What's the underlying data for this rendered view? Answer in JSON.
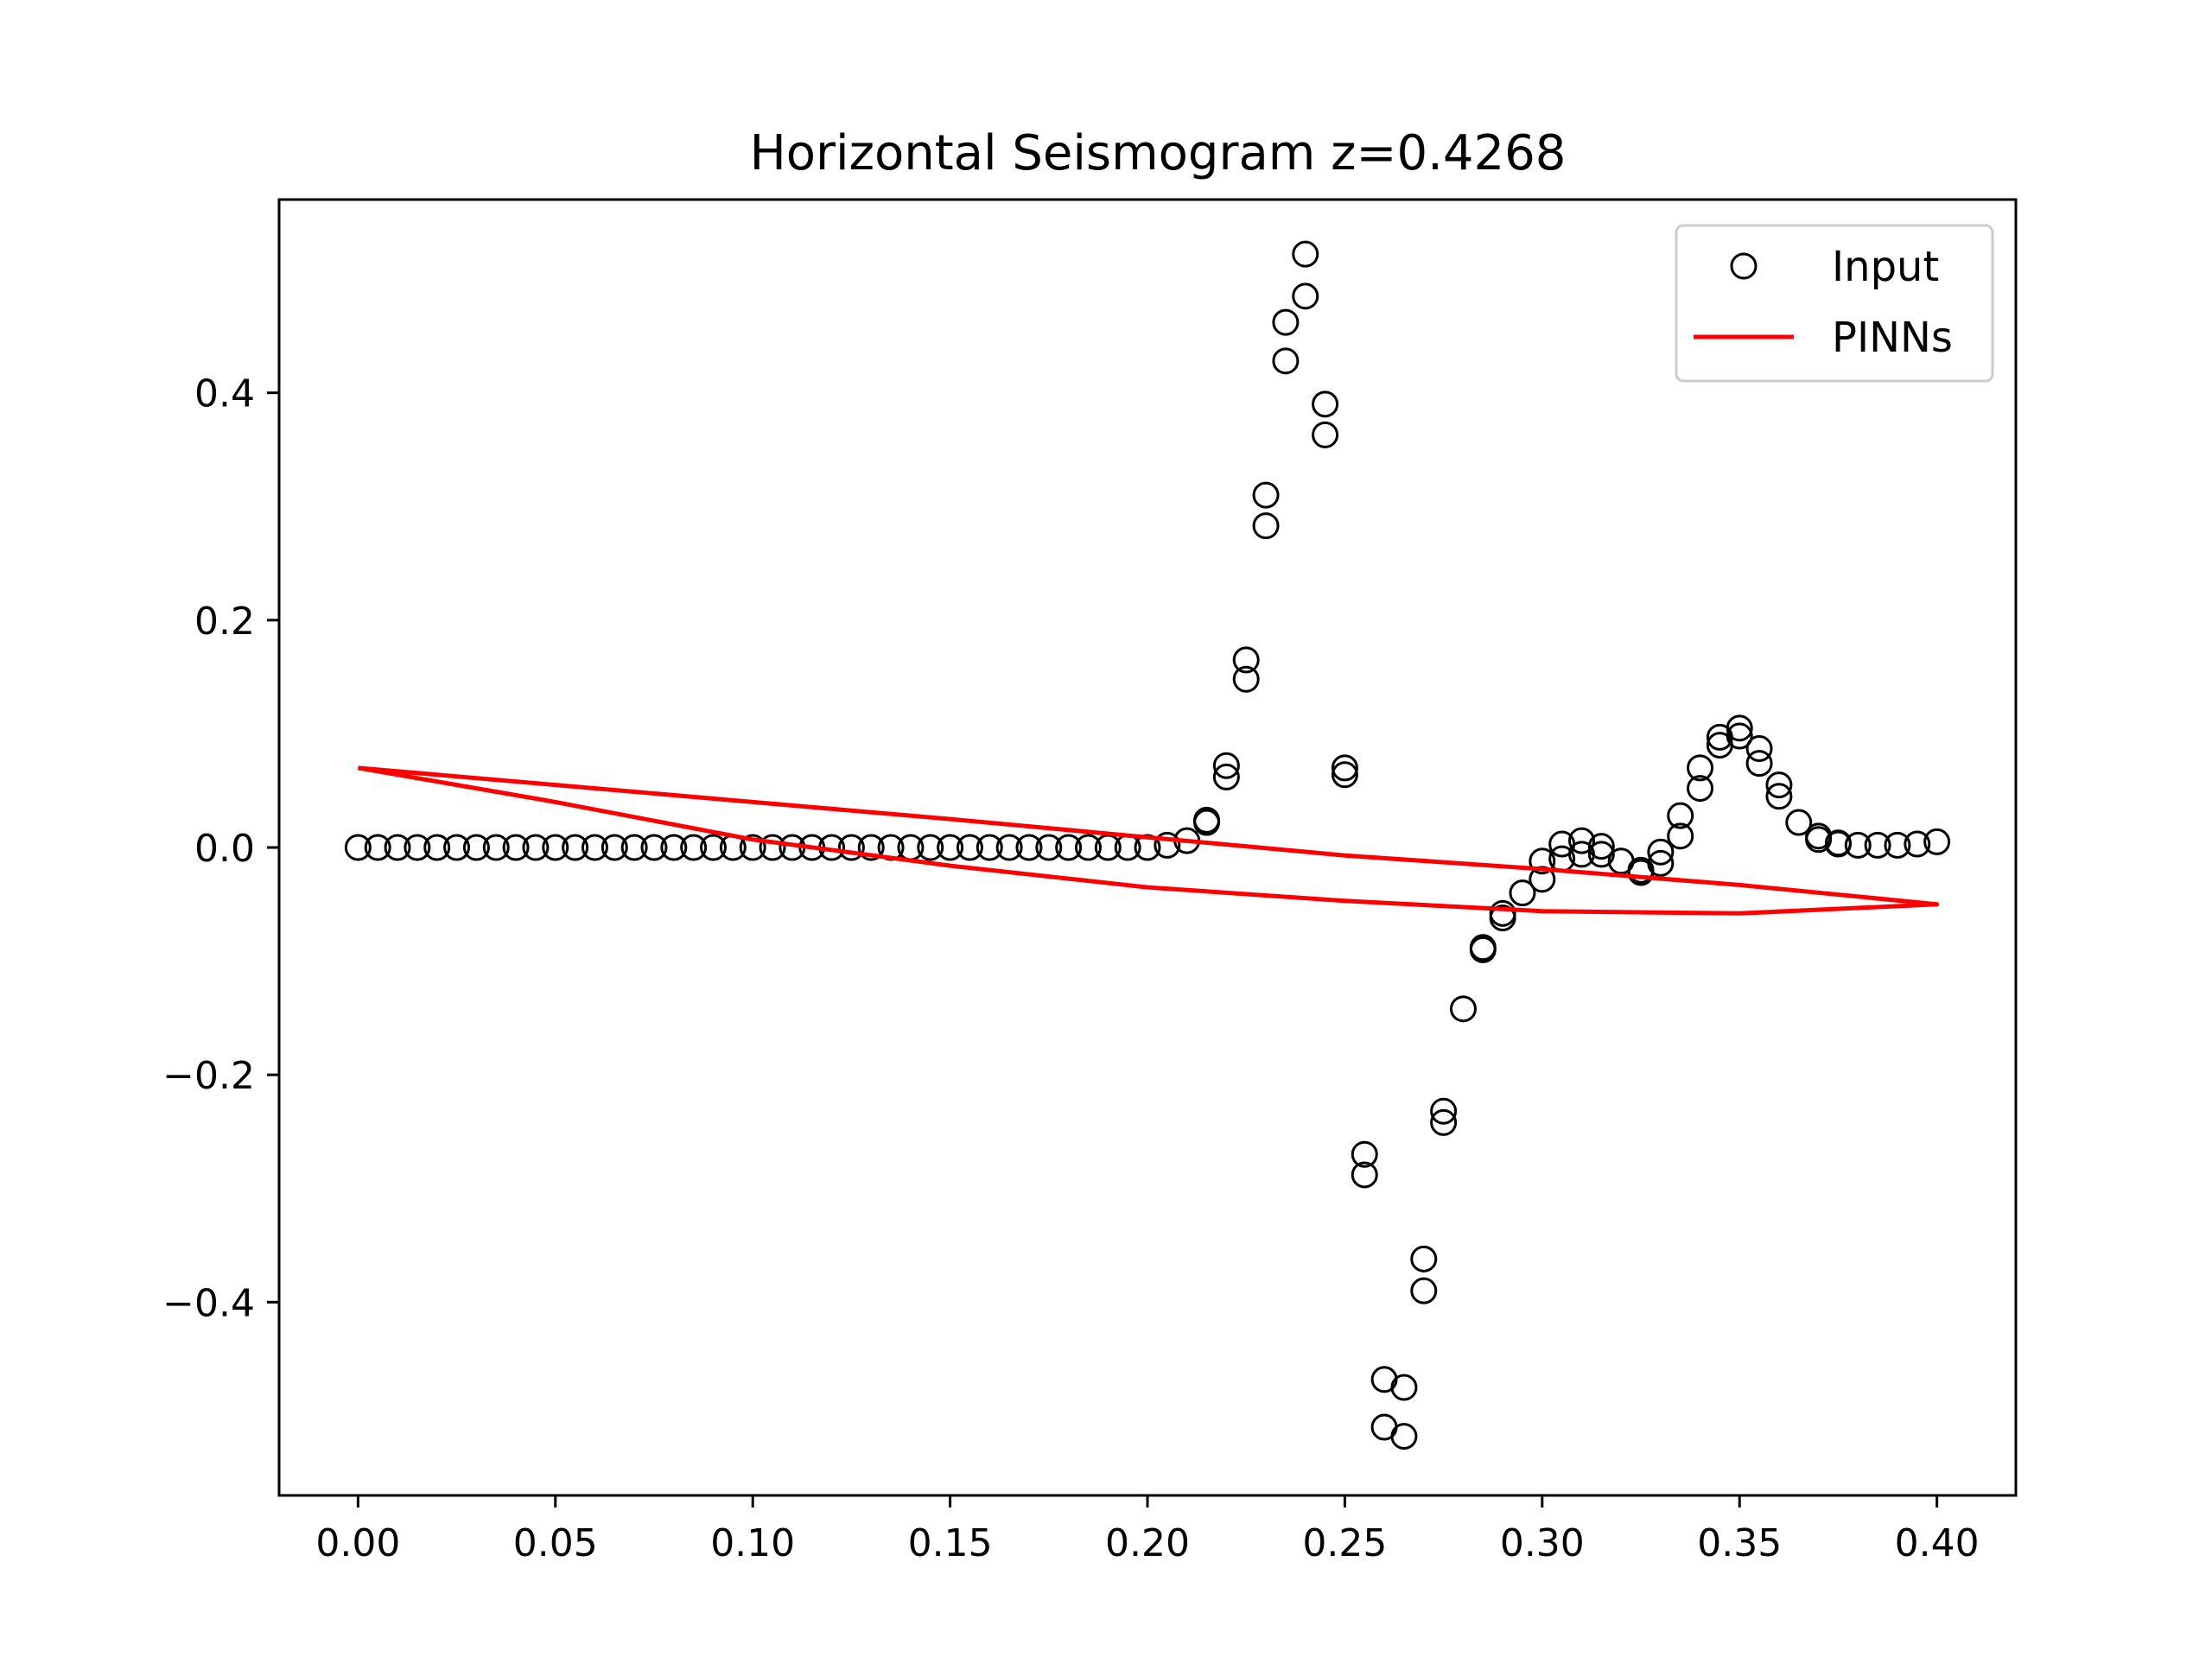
{
  "chart_data": {
    "type": "scatter",
    "title": "Horizontal Seismogram z=0.4268",
    "xlabel": "",
    "ylabel": "",
    "xlim": [
      -0.02,
      0.42
    ],
    "ylim": [
      -0.57,
      0.57
    ],
    "xticks": [
      0.0,
      0.05,
      0.1,
      0.15,
      0.2,
      0.25,
      0.3,
      0.35,
      0.4
    ],
    "xtick_labels": [
      "0.00",
      "0.05",
      "0.10",
      "0.15",
      "0.20",
      "0.25",
      "0.30",
      "0.35",
      "0.40"
    ],
    "yticks": [
      -0.4,
      -0.2,
      0.0,
      0.2,
      0.4
    ],
    "ytick_labels": [
      "−0.4",
      "−0.2",
      "0.0",
      "0.2",
      "0.4"
    ],
    "grid": false,
    "legend_position": "top-right",
    "series": [
      {
        "name": "Input",
        "kind": "scatter",
        "marker": "open-circle",
        "color": "#000000",
        "points": [
          [
            0.0,
            0.0
          ],
          [
            0.005,
            0.0
          ],
          [
            0.01,
            0.0
          ],
          [
            0.015,
            0.0
          ],
          [
            0.02,
            0.0
          ],
          [
            0.025,
            0.0
          ],
          [
            0.03,
            0.0
          ],
          [
            0.035,
            0.0
          ],
          [
            0.04,
            0.0
          ],
          [
            0.045,
            0.0
          ],
          [
            0.05,
            0.0
          ],
          [
            0.055,
            0.0
          ],
          [
            0.06,
            0.0
          ],
          [
            0.065,
            0.0
          ],
          [
            0.07,
            0.0
          ],
          [
            0.075,
            0.0
          ],
          [
            0.08,
            0.0
          ],
          [
            0.085,
            0.0
          ],
          [
            0.09,
            0.0
          ],
          [
            0.095,
            0.0
          ],
          [
            0.1,
            0.0
          ],
          [
            0.105,
            0.0
          ],
          [
            0.11,
            0.0
          ],
          [
            0.115,
            0.0
          ],
          [
            0.12,
            0.0
          ],
          [
            0.125,
            0.0
          ],
          [
            0.13,
            0.0
          ],
          [
            0.135,
            0.0
          ],
          [
            0.14,
            0.0
          ],
          [
            0.145,
            0.0
          ],
          [
            0.15,
            0.0
          ],
          [
            0.155,
            0.0
          ],
          [
            0.16,
            0.0
          ],
          [
            0.165,
            0.0
          ],
          [
            0.17,
            0.0
          ],
          [
            0.175,
            0.0
          ],
          [
            0.18,
            0.0
          ],
          [
            0.185,
            0.0
          ],
          [
            0.19,
            0.0
          ],
          [
            0.195,
            0.0
          ],
          [
            0.2,
            0.0
          ],
          [
            0.205,
            0.002
          ],
          [
            0.21,
            0.006
          ],
          [
            0.215,
            0.024
          ],
          [
            0.215,
            0.022
          ],
          [
            0.22,
            0.072
          ],
          [
            0.22,
            0.062
          ],
          [
            0.225,
            0.165
          ],
          [
            0.225,
            0.148
          ],
          [
            0.23,
            0.31
          ],
          [
            0.23,
            0.283
          ],
          [
            0.235,
            0.462
          ],
          [
            0.235,
            0.428
          ],
          [
            0.24,
            0.522
          ],
          [
            0.24,
            0.485
          ],
          [
            0.245,
            0.39
          ],
          [
            0.245,
            0.363
          ],
          [
            0.25,
            0.07
          ],
          [
            0.25,
            0.064
          ],
          [
            0.255,
            -0.27
          ],
          [
            0.255,
            -0.288
          ],
          [
            0.26,
            -0.468
          ],
          [
            0.26,
            -0.51
          ],
          [
            0.265,
            -0.475
          ],
          [
            0.265,
            -0.518
          ],
          [
            0.27,
            -0.362
          ],
          [
            0.27,
            -0.39
          ],
          [
            0.275,
            -0.232
          ],
          [
            0.275,
            -0.242
          ],
          [
            0.28,
            -0.142
          ],
          [
            0.285,
            -0.088
          ],
          [
            0.285,
            -0.09
          ],
          [
            0.29,
            -0.058
          ],
          [
            0.29,
            -0.062
          ],
          [
            0.295,
            -0.04
          ],
          [
            0.3,
            -0.028
          ],
          [
            0.3,
            -0.012
          ],
          [
            0.305,
            -0.01
          ],
          [
            0.305,
            0.003
          ],
          [
            0.31,
            0.006
          ],
          [
            0.31,
            -0.006
          ],
          [
            0.315,
            0.001
          ],
          [
            0.315,
            -0.006
          ],
          [
            0.32,
            -0.012
          ],
          [
            0.325,
            -0.02
          ],
          [
            0.325,
            -0.022
          ],
          [
            0.33,
            -0.004
          ],
          [
            0.33,
            -0.014
          ],
          [
            0.335,
            0.028
          ],
          [
            0.335,
            0.01
          ],
          [
            0.34,
            0.07
          ],
          [
            0.34,
            0.052
          ],
          [
            0.345,
            0.097
          ],
          [
            0.345,
            0.09
          ],
          [
            0.35,
            0.105
          ],
          [
            0.35,
            0.098
          ],
          [
            0.355,
            0.087
          ],
          [
            0.355,
            0.074
          ],
          [
            0.36,
            0.055
          ],
          [
            0.36,
            0.045
          ],
          [
            0.365,
            0.022
          ],
          [
            0.37,
            0.01
          ],
          [
            0.37,
            0.007
          ],
          [
            0.375,
            0.004
          ],
          [
            0.375,
            0.003
          ],
          [
            0.38,
            0.002
          ],
          [
            0.385,
            0.002
          ],
          [
            0.39,
            0.002
          ],
          [
            0.395,
            0.003
          ],
          [
            0.4,
            0.005
          ]
        ]
      },
      {
        "name": "PINNs",
        "kind": "line",
        "color": "#ff0000",
        "points": [
          [
            0.0,
            0.07
          ],
          [
            0.05,
            0.055
          ],
          [
            0.1,
            0.04
          ],
          [
            0.15,
            0.025
          ],
          [
            0.2,
            0.009
          ],
          [
            0.25,
            -0.007
          ],
          [
            0.3,
            -0.019
          ],
          [
            0.35,
            -0.033
          ],
          [
            0.4,
            -0.05
          ],
          [
            0.35,
            -0.058
          ],
          [
            0.3,
            -0.056
          ],
          [
            0.25,
            -0.047
          ],
          [
            0.2,
            -0.035
          ],
          [
            0.15,
            -0.016
          ],
          [
            0.1,
            0.007
          ],
          [
            0.05,
            0.04
          ],
          [
            0.0,
            0.07
          ]
        ]
      }
    ]
  }
}
